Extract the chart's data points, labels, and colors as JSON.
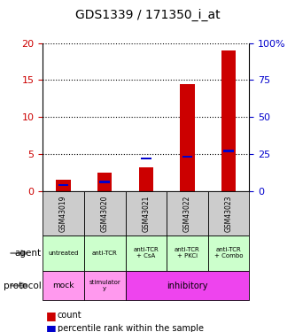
{
  "title": "GDS1339 / 171350_i_at",
  "samples": [
    "GSM43019",
    "GSM43020",
    "GSM43021",
    "GSM43022",
    "GSM43023"
  ],
  "counts": [
    1.5,
    2.5,
    3.2,
    14.5,
    19.0
  ],
  "percentiles_pct": [
    4,
    6,
    22,
    23,
    27
  ],
  "count_color": "#cc0000",
  "percentile_color": "#0000cc",
  "ylim_left": [
    0,
    20
  ],
  "ylim_right": [
    0,
    100
  ],
  "yticks_left": [
    0,
    5,
    10,
    15,
    20
  ],
  "yticks_right": [
    0,
    25,
    50,
    75,
    100
  ],
  "ytick_labels_right": [
    "0",
    "25",
    "50",
    "75",
    "100%"
  ],
  "agent_labels": [
    "untreated",
    "anti-TCR",
    "anti-TCR\n+ CsA",
    "anti-TCR\n+ PKCi",
    "anti-TCR\n+ Combo"
  ],
  "agent_color": "#ccffcc",
  "protocol_mock_color": "#ff99ee",
  "protocol_stim_color": "#ff99ee",
  "protocol_inhib_color": "#ee44ee",
  "sample_bg_color": "#cccccc",
  "bar_width": 0.35,
  "percentile_bar_width": 0.25
}
